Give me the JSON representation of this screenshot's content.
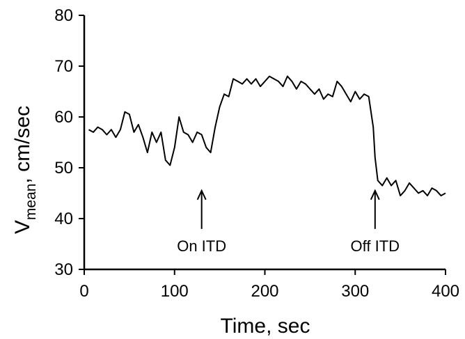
{
  "chart_data": {
    "type": "line",
    "title": "",
    "xlabel": "Time, sec",
    "ylabel": "V",
    "ylabel_subscript": "mean",
    "ylabel_suffix": ", cm/sec",
    "xlim": [
      0,
      400
    ],
    "ylim": [
      30,
      80
    ],
    "xticks": [
      0,
      100,
      200,
      300,
      400
    ],
    "yticks": [
      30,
      40,
      50,
      60,
      70,
      80
    ],
    "grid": false,
    "series": [
      {
        "color": "#000000",
        "x": [
          5,
          10,
          15,
          20,
          25,
          30,
          35,
          40,
          45,
          50,
          55,
          60,
          65,
          70,
          75,
          80,
          85,
          90,
          95,
          100,
          105,
          110,
          115,
          120,
          125,
          130,
          135,
          140,
          145,
          150,
          155,
          160,
          165,
          170,
          175,
          180,
          185,
          190,
          195,
          200,
          205,
          210,
          215,
          220,
          225,
          230,
          235,
          240,
          245,
          250,
          255,
          260,
          265,
          270,
          275,
          280,
          285,
          290,
          295,
          300,
          305,
          310,
          315,
          320,
          322,
          325,
          330,
          335,
          340,
          345,
          350,
          355,
          360,
          365,
          370,
          375,
          380,
          385,
          390,
          395,
          400
        ],
        "y": [
          57.5,
          57,
          58,
          57.5,
          56.5,
          57.5,
          56,
          57.5,
          61,
          60.5,
          57,
          58.5,
          56,
          53,
          57,
          55,
          57,
          51.5,
          50.5,
          54,
          60,
          57,
          56.5,
          55,
          57,
          56.5,
          54,
          53,
          58,
          62,
          64.5,
          64,
          67.5,
          67,
          66.5,
          67.5,
          66.5,
          67.5,
          66,
          67,
          68,
          67.5,
          67,
          66,
          68,
          67,
          65.5,
          67,
          66.5,
          65.5,
          64.5,
          65.5,
          63.5,
          64.5,
          64,
          67,
          66,
          64.5,
          63,
          65,
          63.5,
          64.5,
          64,
          58,
          52,
          47.5,
          46.5,
          48,
          46.5,
          47.5,
          44.5,
          45.5,
          47,
          46,
          45,
          45.5,
          44.5,
          46,
          45.5,
          44.5,
          45
        ]
      }
    ],
    "annotations": [
      {
        "text": "On ITD",
        "x": 130,
        "y_tip": 45.5
      },
      {
        "text": "Off ITD",
        "x": 322,
        "y_tip": 45.5
      }
    ]
  }
}
